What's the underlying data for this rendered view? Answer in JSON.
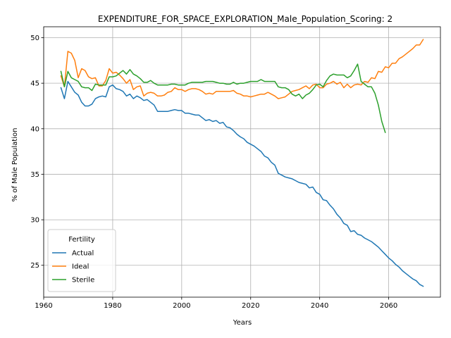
{
  "chart_data": {
    "type": "line",
    "title": "EXPENDITURE_FOR_SPACE_EXPLORATION_Male_Population_Scoring: 2",
    "xlabel": "Years",
    "ylabel": "% of Male Population",
    "xlim": [
      1960,
      2075
    ],
    "ylim": [
      21.5,
      51.2
    ],
    "xticks": [
      1960,
      1980,
      2000,
      2020,
      2040,
      2060
    ],
    "yticks": [
      25,
      30,
      35,
      40,
      45,
      50
    ],
    "grid": true,
    "legend": {
      "title": "Fertility",
      "placement": "lower-left"
    },
    "series": [
      {
        "name": "Actual",
        "color": "#1f77b4",
        "points": [
          [
            1965,
            44.5
          ],
          [
            1966,
            43.3
          ],
          [
            1967,
            45.2
          ],
          [
            1968,
            44.6
          ],
          [
            1969,
            44.0
          ],
          [
            1970,
            43.7
          ],
          [
            1971,
            42.9
          ],
          [
            1972,
            42.5
          ],
          [
            1973,
            42.5
          ],
          [
            1974,
            42.7
          ],
          [
            1975,
            43.3
          ],
          [
            1976,
            43.5
          ],
          [
            1977,
            43.6
          ],
          [
            1978,
            43.5
          ],
          [
            1979,
            44.6
          ],
          [
            1980,
            44.8
          ],
          [
            1981,
            44.4
          ],
          [
            1982,
            44.3
          ],
          [
            1983,
            44.1
          ],
          [
            1984,
            43.6
          ],
          [
            1985,
            43.8
          ],
          [
            1986,
            43.3
          ],
          [
            1987,
            43.6
          ],
          [
            1988,
            43.4
          ],
          [
            1989,
            43.1
          ],
          [
            1990,
            43.2
          ],
          [
            1991,
            42.9
          ],
          [
            1992,
            42.6
          ],
          [
            1993,
            41.9
          ],
          [
            1994,
            41.9
          ],
          [
            1995,
            41.9
          ],
          [
            1996,
            41.9
          ],
          [
            1997,
            42.0
          ],
          [
            1998,
            42.1
          ],
          [
            1999,
            42.0
          ],
          [
            2000,
            42.0
          ],
          [
            2001,
            41.7
          ],
          [
            2002,
            41.7
          ],
          [
            2003,
            41.6
          ],
          [
            2004,
            41.5
          ],
          [
            2005,
            41.5
          ],
          [
            2006,
            41.2
          ],
          [
            2007,
            40.9
          ],
          [
            2008,
            41.0
          ],
          [
            2009,
            40.8
          ],
          [
            2010,
            40.9
          ],
          [
            2011,
            40.6
          ],
          [
            2012,
            40.7
          ],
          [
            2013,
            40.2
          ],
          [
            2014,
            40.1
          ],
          [
            2015,
            39.8
          ],
          [
            2016,
            39.4
          ],
          [
            2017,
            39.1
          ],
          [
            2018,
            38.9
          ],
          [
            2019,
            38.5
          ],
          [
            2020,
            38.3
          ],
          [
            2021,
            38.1
          ],
          [
            2022,
            37.8
          ],
          [
            2023,
            37.5
          ],
          [
            2024,
            37.0
          ],
          [
            2025,
            36.8
          ],
          [
            2026,
            36.3
          ],
          [
            2027,
            36.0
          ],
          [
            2028,
            35.1
          ],
          [
            2029,
            34.9
          ],
          [
            2030,
            34.7
          ],
          [
            2031,
            34.6
          ],
          [
            2032,
            34.5
          ],
          [
            2033,
            34.3
          ],
          [
            2034,
            34.1
          ],
          [
            2035,
            34.0
          ],
          [
            2036,
            33.9
          ],
          [
            2037,
            33.5
          ],
          [
            2038,
            33.6
          ],
          [
            2039,
            33.0
          ],
          [
            2040,
            32.8
          ],
          [
            2041,
            32.2
          ],
          [
            2042,
            32.1
          ],
          [
            2043,
            31.6
          ],
          [
            2044,
            31.2
          ],
          [
            2045,
            30.6
          ],
          [
            2046,
            30.2
          ],
          [
            2047,
            29.6
          ],
          [
            2048,
            29.4
          ],
          [
            2049,
            28.7
          ],
          [
            2050,
            28.8
          ],
          [
            2051,
            28.4
          ],
          [
            2052,
            28.3
          ],
          [
            2053,
            28.0
          ],
          [
            2054,
            27.8
          ],
          [
            2055,
            27.6
          ],
          [
            2056,
            27.3
          ],
          [
            2057,
            27.0
          ],
          [
            2058,
            26.6
          ],
          [
            2059,
            26.2
          ],
          [
            2060,
            25.8
          ],
          [
            2061,
            25.5
          ],
          [
            2062,
            25.1
          ],
          [
            2063,
            24.8
          ],
          [
            2064,
            24.4
          ],
          [
            2065,
            24.1
          ],
          [
            2066,
            23.8
          ],
          [
            2067,
            23.5
          ],
          [
            2068,
            23.3
          ],
          [
            2069,
            22.9
          ],
          [
            2070,
            22.7
          ]
        ]
      },
      {
        "name": "Ideal",
        "color": "#ff7f0e",
        "points": [
          [
            1965,
            45.8
          ],
          [
            1966,
            44.6
          ],
          [
            1967,
            48.5
          ],
          [
            1968,
            48.3
          ],
          [
            1969,
            47.5
          ],
          [
            1970,
            45.6
          ],
          [
            1971,
            46.6
          ],
          [
            1972,
            46.4
          ],
          [
            1973,
            45.7
          ],
          [
            1974,
            45.5
          ],
          [
            1975,
            45.6
          ],
          [
            1976,
            44.7
          ],
          [
            1977,
            44.7
          ],
          [
            1978,
            45.3
          ],
          [
            1979,
            46.6
          ],
          [
            1980,
            46.1
          ],
          [
            1981,
            46.2
          ],
          [
            1982,
            45.9
          ],
          [
            1983,
            45.5
          ],
          [
            1984,
            45.0
          ],
          [
            1985,
            45.4
          ],
          [
            1986,
            44.3
          ],
          [
            1987,
            44.6
          ],
          [
            1988,
            44.7
          ],
          [
            1989,
            43.6
          ],
          [
            1990,
            43.9
          ],
          [
            1991,
            44.0
          ],
          [
            1992,
            43.9
          ],
          [
            1993,
            43.6
          ],
          [
            1994,
            43.6
          ],
          [
            1995,
            43.7
          ],
          [
            1996,
            44.0
          ],
          [
            1997,
            44.1
          ],
          [
            1998,
            44.5
          ],
          [
            1999,
            44.3
          ],
          [
            2000,
            44.3
          ],
          [
            2001,
            44.1
          ],
          [
            2002,
            44.3
          ],
          [
            2003,
            44.4
          ],
          [
            2004,
            44.4
          ],
          [
            2005,
            44.3
          ],
          [
            2006,
            44.1
          ],
          [
            2007,
            43.8
          ],
          [
            2008,
            43.9
          ],
          [
            2009,
            43.8
          ],
          [
            2010,
            44.1
          ],
          [
            2011,
            44.1
          ],
          [
            2012,
            44.1
          ],
          [
            2013,
            44.1
          ],
          [
            2014,
            44.1
          ],
          [
            2015,
            44.2
          ],
          [
            2016,
            43.9
          ],
          [
            2017,
            43.8
          ],
          [
            2018,
            43.6
          ],
          [
            2019,
            43.6
          ],
          [
            2020,
            43.5
          ],
          [
            2021,
            43.6
          ],
          [
            2022,
            43.7
          ],
          [
            2023,
            43.8
          ],
          [
            2024,
            43.8
          ],
          [
            2025,
            44.0
          ],
          [
            2026,
            43.8
          ],
          [
            2027,
            43.6
          ],
          [
            2028,
            43.3
          ],
          [
            2029,
            43.4
          ],
          [
            2030,
            43.5
          ],
          [
            2031,
            43.8
          ],
          [
            2032,
            44.1
          ],
          [
            2033,
            44.2
          ],
          [
            2034,
            44.3
          ],
          [
            2035,
            44.5
          ],
          [
            2036,
            44.7
          ],
          [
            2037,
            44.4
          ],
          [
            2038,
            44.8
          ],
          [
            2039,
            44.9
          ],
          [
            2040,
            44.5
          ],
          [
            2041,
            44.5
          ],
          [
            2042,
            44.9
          ],
          [
            2043,
            45.0
          ],
          [
            2044,
            45.2
          ],
          [
            2045,
            44.9
          ],
          [
            2046,
            45.1
          ],
          [
            2047,
            44.5
          ],
          [
            2048,
            44.9
          ],
          [
            2049,
            44.5
          ],
          [
            2050,
            44.8
          ],
          [
            2051,
            44.9
          ],
          [
            2052,
            44.8
          ],
          [
            2053,
            45.2
          ],
          [
            2054,
            45.1
          ],
          [
            2055,
            45.6
          ],
          [
            2056,
            45.5
          ],
          [
            2057,
            46.3
          ],
          [
            2058,
            46.2
          ],
          [
            2059,
            46.8
          ],
          [
            2060,
            46.7
          ],
          [
            2061,
            47.2
          ],
          [
            2062,
            47.2
          ],
          [
            2063,
            47.7
          ],
          [
            2064,
            47.9
          ],
          [
            2065,
            48.2
          ],
          [
            2066,
            48.5
          ],
          [
            2067,
            48.8
          ],
          [
            2068,
            49.2
          ],
          [
            2069,
            49.2
          ],
          [
            2070,
            49.8
          ]
        ]
      },
      {
        "name": "Sterile",
        "color": "#2ca02c",
        "points": [
          [
            1965,
            46.3
          ],
          [
            1966,
            44.6
          ],
          [
            1967,
            46.3
          ],
          [
            1968,
            45.6
          ],
          [
            1969,
            45.4
          ],
          [
            1970,
            45.2
          ],
          [
            1971,
            44.6
          ],
          [
            1972,
            44.5
          ],
          [
            1973,
            44.5
          ],
          [
            1974,
            44.2
          ],
          [
            1975,
            44.9
          ],
          [
            1976,
            44.8
          ],
          [
            1977,
            44.8
          ],
          [
            1978,
            44.8
          ],
          [
            1979,
            45.7
          ],
          [
            1980,
            45.7
          ],
          [
            1981,
            45.8
          ],
          [
            1982,
            46.1
          ],
          [
            1983,
            46.4
          ],
          [
            1984,
            46.0
          ],
          [
            1985,
            46.5
          ],
          [
            1986,
            46.0
          ],
          [
            1987,
            45.8
          ],
          [
            1988,
            45.5
          ],
          [
            1989,
            45.1
          ],
          [
            1990,
            45.1
          ],
          [
            1991,
            45.3
          ],
          [
            1992,
            45.0
          ],
          [
            1993,
            44.8
          ],
          [
            1994,
            44.8
          ],
          [
            1995,
            44.8
          ],
          [
            1996,
            44.8
          ],
          [
            1997,
            44.9
          ],
          [
            1998,
            44.9
          ],
          [
            1999,
            44.8
          ],
          [
            2000,
            44.8
          ],
          [
            2001,
            44.8
          ],
          [
            2002,
            45.0
          ],
          [
            2003,
            45.1
          ],
          [
            2004,
            45.1
          ],
          [
            2005,
            45.1
          ],
          [
            2006,
            45.1
          ],
          [
            2007,
            45.2
          ],
          [
            2008,
            45.2
          ],
          [
            2009,
            45.2
          ],
          [
            2010,
            45.1
          ],
          [
            2011,
            45.0
          ],
          [
            2012,
            45.0
          ],
          [
            2013,
            44.9
          ],
          [
            2014,
            44.9
          ],
          [
            2015,
            45.1
          ],
          [
            2016,
            44.9
          ],
          [
            2017,
            45.0
          ],
          [
            2018,
            45.0
          ],
          [
            2019,
            45.1
          ],
          [
            2020,
            45.2
          ],
          [
            2021,
            45.2
          ],
          [
            2022,
            45.2
          ],
          [
            2023,
            45.4
          ],
          [
            2024,
            45.2
          ],
          [
            2025,
            45.2
          ],
          [
            2026,
            45.2
          ],
          [
            2027,
            45.2
          ],
          [
            2028,
            44.6
          ],
          [
            2029,
            44.5
          ],
          [
            2030,
            44.5
          ],
          [
            2031,
            44.3
          ],
          [
            2032,
            43.8
          ],
          [
            2033,
            43.6
          ],
          [
            2034,
            43.8
          ],
          [
            2035,
            43.3
          ],
          [
            2036,
            43.7
          ],
          [
            2037,
            43.9
          ],
          [
            2038,
            44.3
          ],
          [
            2039,
            44.8
          ],
          [
            2040,
            44.9
          ],
          [
            2041,
            44.6
          ],
          [
            2042,
            45.3
          ],
          [
            2043,
            45.8
          ],
          [
            2044,
            46.0
          ],
          [
            2045,
            45.9
          ],
          [
            2046,
            45.9
          ],
          [
            2047,
            45.9
          ],
          [
            2048,
            45.6
          ],
          [
            2049,
            45.8
          ],
          [
            2050,
            46.4
          ],
          [
            2051,
            47.1
          ],
          [
            2052,
            45.2
          ],
          [
            2053,
            44.9
          ],
          [
            2054,
            44.6
          ],
          [
            2055,
            44.6
          ],
          [
            2056,
            43.9
          ],
          [
            2057,
            42.6
          ],
          [
            2058,
            40.8
          ],
          [
            2059,
            39.6
          ]
        ]
      }
    ]
  }
}
